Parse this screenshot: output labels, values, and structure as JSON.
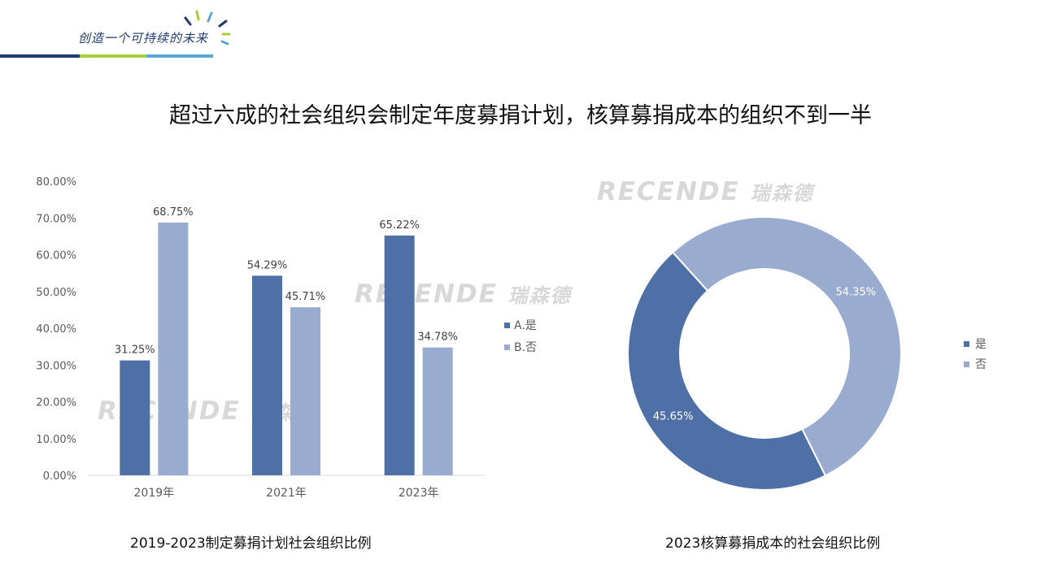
{
  "header": {
    "slogan": "创造一个可持续的未来",
    "colors": {
      "navy": "#1f3a6e",
      "green": "#a9cf38",
      "blue": "#5aa6d6"
    }
  },
  "title": "超过六成的社会组织会制定年度募捐计划，核算募捐成本的组织不到一半",
  "watermark": {
    "latin": "RECENDE",
    "cjk": "瑞森德"
  },
  "chart_data": [
    {
      "type": "bar",
      "categories": [
        "2019年",
        "2021年",
        "2023年"
      ],
      "series": [
        {
          "name": "A.是",
          "values": [
            31.25,
            54.29,
            65.22
          ],
          "labels": [
            "31.25%",
            "54.29%",
            "65.22%"
          ],
          "color": "#4e70a6"
        },
        {
          "name": "B.否",
          "values": [
            68.75,
            45.71,
            34.78
          ],
          "labels": [
            "68.75%",
            "45.71%",
            "34.78%"
          ],
          "color": "#9aabd0"
        }
      ],
      "yticks": [
        "0.00%",
        "10.00%",
        "20.00%",
        "30.00%",
        "40.00%",
        "50.00%",
        "60.00%",
        "70.00%",
        "80.00%"
      ],
      "ylim": [
        0,
        80
      ],
      "legend": "right",
      "caption": "2019-2023制定募捐计划社会组织比例"
    },
    {
      "type": "pie",
      "donut": true,
      "slices": [
        {
          "name": "是",
          "value": 45.65,
          "label": "45.65%",
          "color": "#4e70a6"
        },
        {
          "name": "否",
          "value": 54.35,
          "label": "54.35%",
          "color": "#9aabd0"
        }
      ],
      "legend": "right",
      "caption": "2023核算募捐成本的社会组织比例"
    }
  ]
}
